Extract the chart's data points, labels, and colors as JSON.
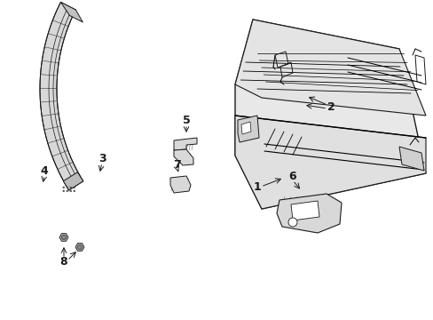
{
  "bg_color": "#ffffff",
  "line_color": "#1a1a1a",
  "gray_fill": "#c8c8c8",
  "light_gray": "#e0e0e0",
  "fig_width": 4.89,
  "fig_height": 3.6,
  "dpi": 100
}
